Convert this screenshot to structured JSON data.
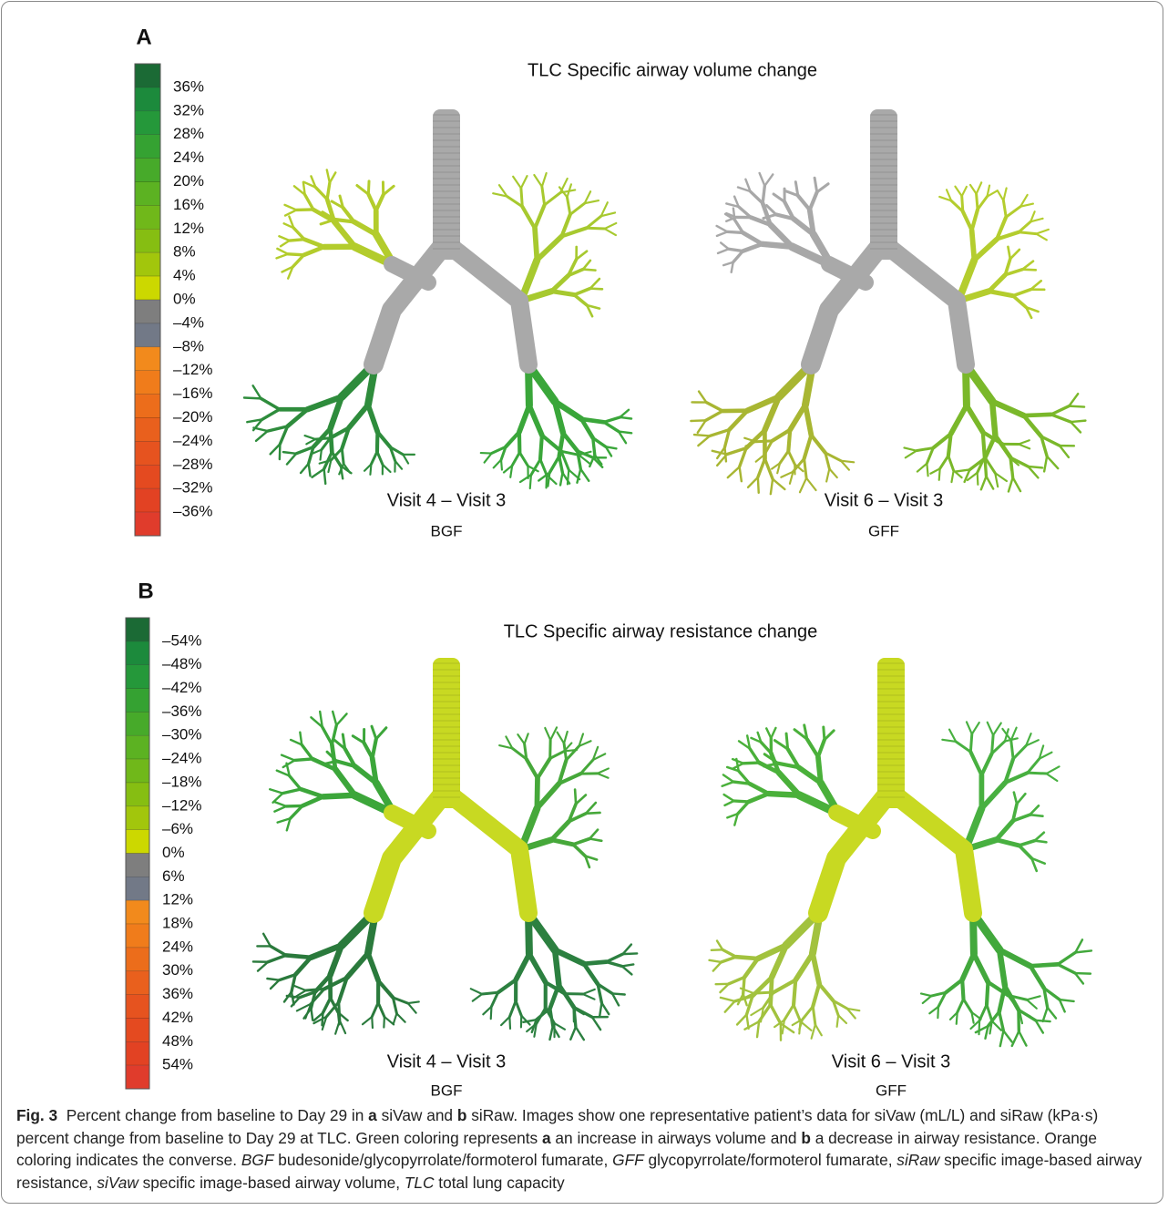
{
  "panels": [
    {
      "label": "A",
      "title": "TLC Specific airway volume change",
      "legend": {
        "colors": [
          "#1b6a35",
          "#1c8a3c",
          "#25983a",
          "#35a232",
          "#47aa2a",
          "#5cb222",
          "#70b81a",
          "#86be12",
          "#a2c60c",
          "#ccd800",
          "#7e7e7e",
          "#727987",
          "#f28a1c",
          "#f07c1b",
          "#ec6d1b",
          "#e9601d",
          "#e6531f",
          "#e44a20",
          "#e24223",
          "#e03c2c"
        ],
        "labels": [
          "36%",
          "32%",
          "28%",
          "24%",
          "20%",
          "16%",
          "12%",
          "8%",
          "4%",
          "0%",
          "–4%",
          "–8%",
          "–12%",
          "–16%",
          "–20%",
          "–24%",
          "–28%",
          "–32%",
          "–36%"
        ]
      },
      "images": [
        {
          "comparison": "Visit 4 – Visit 3",
          "treatment": "BGF"
        },
        {
          "comparison": "Visit 6 – Visit 3",
          "treatment": "GFF"
        }
      ]
    },
    {
      "label": "B",
      "title": "TLC Specific airway resistance change",
      "legend": {
        "colors": [
          "#1b6a35",
          "#1c8a3c",
          "#25983a",
          "#35a232",
          "#47aa2a",
          "#5cb222",
          "#70b81a",
          "#86be12",
          "#a2c60c",
          "#ccd800",
          "#7e7e7e",
          "#727987",
          "#f28a1c",
          "#f07c1b",
          "#ec6d1b",
          "#e9601d",
          "#e6531f",
          "#e44a20",
          "#e24223",
          "#e03c2c"
        ],
        "labels": [
          "–54%",
          "–48%",
          "–42%",
          "–36%",
          "–30%",
          "–24%",
          "–18%",
          "–12%",
          "–6%",
          "0%",
          "6%",
          "12%",
          "18%",
          "24%",
          "30%",
          "36%",
          "42%",
          "48%",
          "54%"
        ]
      },
      "images": [
        {
          "comparison": "Visit 4 – Visit 3",
          "treatment": "BGF"
        },
        {
          "comparison": "Visit 6 – Visit 3",
          "treatment": "GFF"
        }
      ]
    }
  ],
  "caption": {
    "runs": [
      {
        "text": "Fig. 3",
        "bold": true
      },
      {
        "text": "  Percent change from baseline to Day 29 in "
      },
      {
        "text": "a",
        "bold": true
      },
      {
        "text": " siVaw and "
      },
      {
        "text": "b",
        "bold": true
      },
      {
        "text": " siRaw. Images show one representative patient’s data for siVaw (mL/L) and siRaw (kPa·s) percent change from baseline to Day 29 at TLC. Green coloring represents "
      },
      {
        "text": "a",
        "bold": true
      },
      {
        "text": " an increase in airways volume and "
      },
      {
        "text": "b",
        "bold": true
      },
      {
        "text": " a decrease in airway resistance. Orange coloring indicates the converse. "
      },
      {
        "text": "BGF",
        "italic": true
      },
      {
        "text": " budesonide/glycopyrrolate/formoterol fumarate, "
      },
      {
        "text": "GFF",
        "italic": true
      },
      {
        "text": " glycopyrrolate/formoterol fumarate, "
      },
      {
        "text": "siRaw",
        "italic": true
      },
      {
        "text": " specific image-based airway resistance, "
      },
      {
        "text": "siVaw",
        "italic": true
      },
      {
        "text": " specific image-based airway volume, "
      },
      {
        "text": "TLC",
        "italic": true
      },
      {
        "text": " total lung capacity"
      }
    ]
  }
}
